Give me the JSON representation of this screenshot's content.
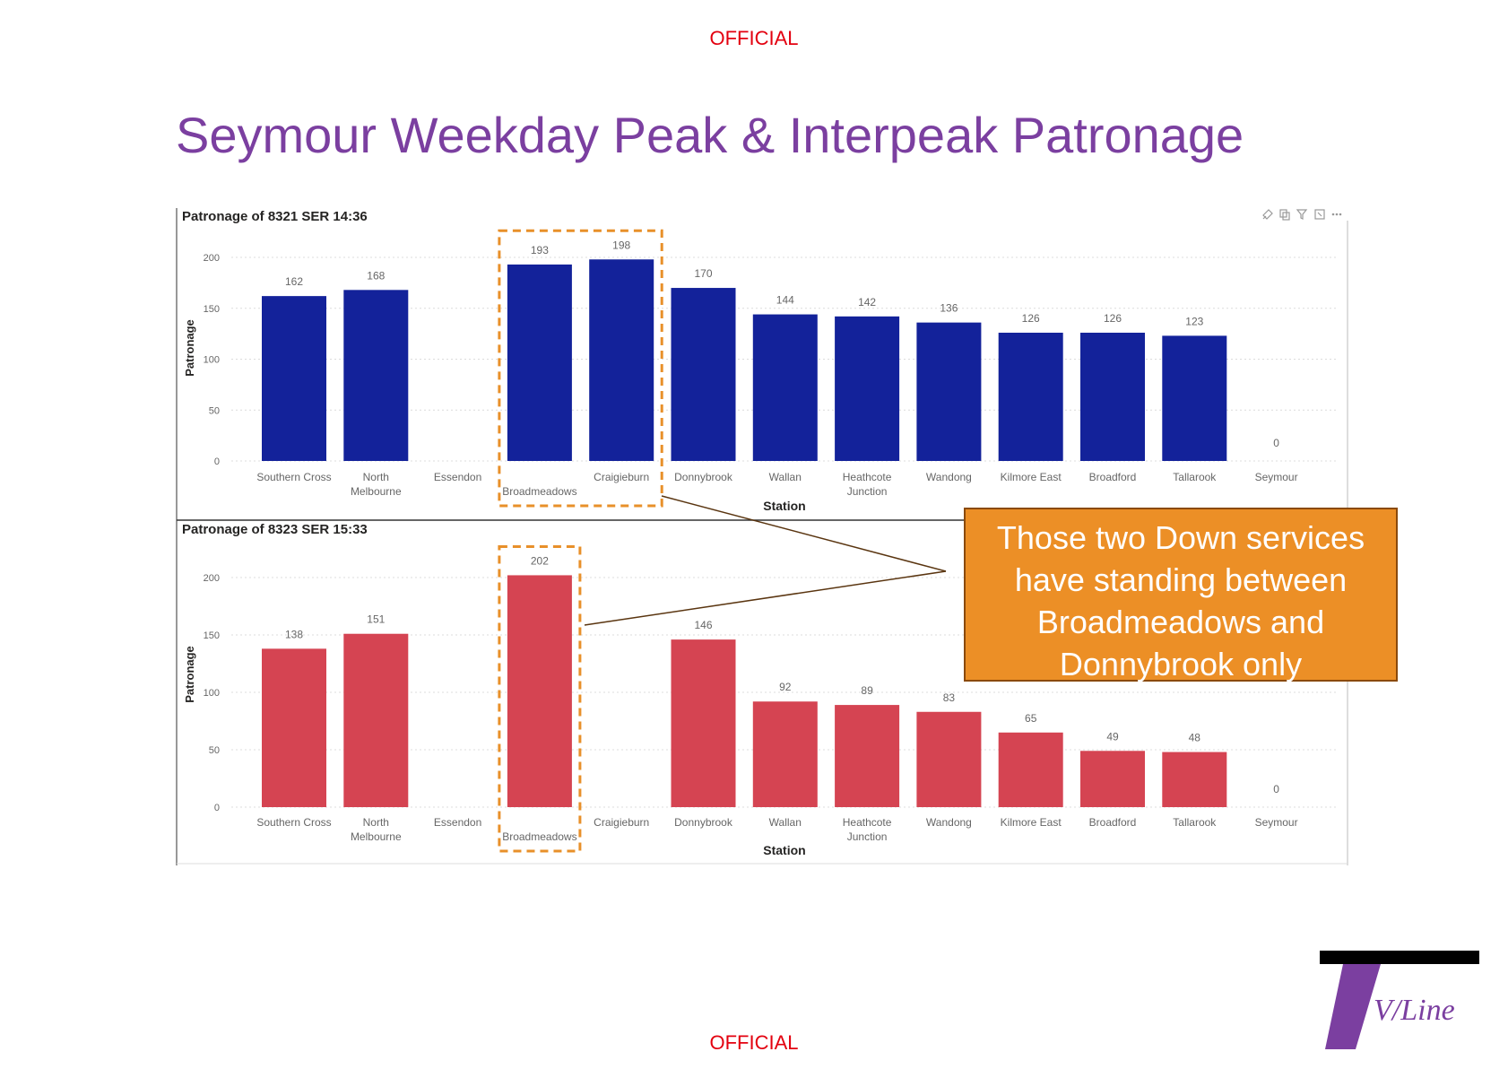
{
  "header": {
    "classification_top": "OFFICIAL",
    "classification_bottom": "OFFICIAL"
  },
  "slide": {
    "title": "Seymour Weekday Peak & Interpeak Patronage"
  },
  "callout": {
    "text": "Those two Down services have standing between Broadmeadows and Donnybrook only"
  },
  "colors": {
    "title": "#7b3fa0",
    "official": "#e3000f",
    "callout_bg": "#ec8f26",
    "highlight_box": "#e8902a",
    "logo": "#7b3fa0"
  },
  "logo": {
    "text": "V/Line"
  },
  "chart_data": [
    {
      "type": "bar",
      "title": "Patronage of 8321 SER 14:36",
      "xlabel": "Station",
      "ylabel": "Patronage",
      "categories": [
        "Southern Cross",
        "North Melbourne",
        "Essendon",
        "Broadmeadows",
        "Craigieburn",
        "Donnybrook",
        "Wallan",
        "Heathcote Junction",
        "Wandong",
        "Kilmore East",
        "Broadford",
        "Tallarook",
        "Seymour"
      ],
      "values": [
        162,
        168,
        null,
        193,
        198,
        170,
        144,
        142,
        136,
        126,
        126,
        123,
        0
      ],
      "ylim": [
        0,
        200
      ],
      "yticks": [
        0,
        50,
        100,
        150,
        200
      ],
      "color": "#13229a",
      "grid": true,
      "highlight": [
        "Broadmeadows",
        "Craigieburn"
      ]
    },
    {
      "type": "bar",
      "title": "Patronage of 8323 SER 15:33",
      "xlabel": "Station",
      "ylabel": "Patronage",
      "categories": [
        "Southern Cross",
        "North Melbourne",
        "Essendon",
        "Broadmeadows",
        "Craigieburn",
        "Donnybrook",
        "Wallan",
        "Heathcote Junction",
        "Wandong",
        "Kilmore East",
        "Broadford",
        "Tallarook",
        "Seymour"
      ],
      "values": [
        138,
        151,
        null,
        202,
        null,
        146,
        92,
        89,
        83,
        65,
        49,
        48,
        0
      ],
      "ylim": [
        0,
        200
      ],
      "yticks": [
        0,
        50,
        100,
        150,
        200
      ],
      "color": "#d54452",
      "grid": true,
      "highlight": [
        "Broadmeadows"
      ]
    }
  ]
}
